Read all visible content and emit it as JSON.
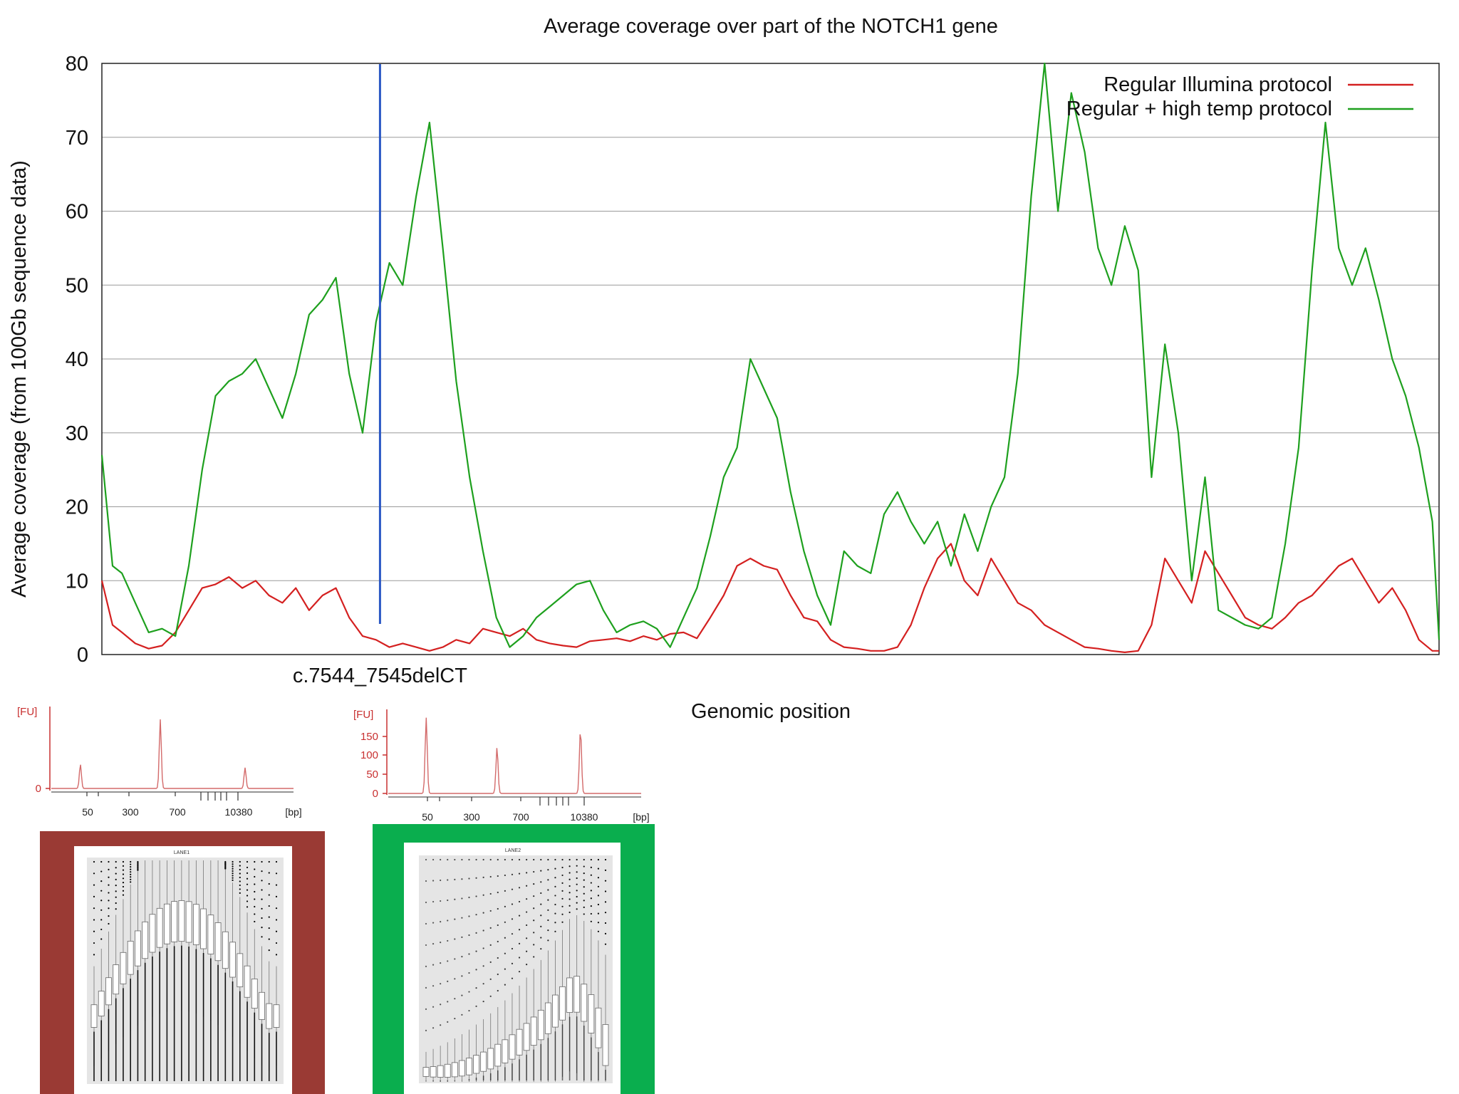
{
  "chart_data": [
    {
      "type": "line",
      "title": "Average coverage over part of the NOTCH1 gene",
      "xlabel": "Genomic position",
      "ylabel": "Average coverage (from 100Gb sequence data)",
      "ylim": [
        0,
        80
      ],
      "xlim": [
        0,
        100
      ],
      "yticks": [
        "0",
        "10",
        "20",
        "30",
        "40",
        "50",
        "60",
        "70",
        "80"
      ],
      "grid": true,
      "legend_position": "top-right",
      "annotation": {
        "label": "c.7544_7545delCT",
        "x": 20.8
      },
      "series": [
        {
          "name": "Regular Illumina protocol",
          "color": "#d42020",
          "points": [
            [
              0,
              10
            ],
            [
              0.8,
              4
            ],
            [
              1.5,
              3
            ],
            [
              2.5,
              1.5
            ],
            [
              3.5,
              0.8
            ],
            [
              4.5,
              1.2
            ],
            [
              5.5,
              3
            ],
            [
              6.5,
              6
            ],
            [
              7.5,
              9
            ],
            [
              8.5,
              9.5
            ],
            [
              9.5,
              10.5
            ],
            [
              10.5,
              9
            ],
            [
              11.5,
              10
            ],
            [
              12.5,
              8
            ],
            [
              13.5,
              7
            ],
            [
              14.5,
              9
            ],
            [
              15.5,
              6
            ],
            [
              16.5,
              8
            ],
            [
              17.5,
              9
            ],
            [
              18.5,
              5
            ],
            [
              19.5,
              2.5
            ],
            [
              20.5,
              2
            ],
            [
              21.5,
              1
            ],
            [
              22.5,
              1.5
            ],
            [
              23.5,
              1
            ],
            [
              24.5,
              0.5
            ],
            [
              25.5,
              1
            ],
            [
              26.5,
              2
            ],
            [
              27.5,
              1.5
            ],
            [
              28.5,
              3.5
            ],
            [
              29.5,
              3
            ],
            [
              30.5,
              2.5
            ],
            [
              31.5,
              3.5
            ],
            [
              32.5,
              2
            ],
            [
              33.5,
              1.5
            ],
            [
              34.5,
              1.2
            ],
            [
              35.5,
              1
            ],
            [
              36.5,
              1.8
            ],
            [
              37.5,
              2
            ],
            [
              38.5,
              2.2
            ],
            [
              39.5,
              1.8
            ],
            [
              40.5,
              2.5
            ],
            [
              41.5,
              2
            ],
            [
              42.5,
              2.8
            ],
            [
              43.5,
              3
            ],
            [
              44.5,
              2.2
            ],
            [
              45.5,
              5
            ],
            [
              46.5,
              8
            ],
            [
              47.5,
              12
            ],
            [
              48.5,
              13
            ],
            [
              49.5,
              12
            ],
            [
              50.5,
              11.5
            ],
            [
              51.5,
              8
            ],
            [
              52.5,
              5
            ],
            [
              53.5,
              4.5
            ],
            [
              54.5,
              2
            ],
            [
              55.5,
              1
            ],
            [
              56.5,
              0.8
            ],
            [
              57.5,
              0.5
            ],
            [
              58.5,
              0.5
            ],
            [
              59.5,
              1
            ],
            [
              60.5,
              4
            ],
            [
              61.5,
              9
            ],
            [
              62.5,
              13
            ],
            [
              63.5,
              15
            ],
            [
              64.5,
              10
            ],
            [
              65.5,
              8
            ],
            [
              66.5,
              13
            ],
            [
              67.5,
              10
            ],
            [
              68.5,
              7
            ],
            [
              69.5,
              6
            ],
            [
              70.5,
              4
            ],
            [
              71.5,
              3
            ],
            [
              72.5,
              2
            ],
            [
              73.5,
              1
            ],
            [
              74.5,
              0.8
            ],
            [
              75.5,
              0.5
            ],
            [
              76.5,
              0.3
            ],
            [
              77.5,
              0.5
            ],
            [
              78.5,
              4
            ],
            [
              79.5,
              13
            ],
            [
              80.5,
              10
            ],
            [
              81.5,
              7
            ],
            [
              82.5,
              14
            ],
            [
              83.5,
              11
            ],
            [
              84.5,
              8
            ],
            [
              85.5,
              5
            ],
            [
              86.5,
              4
            ],
            [
              87.5,
              3.5
            ],
            [
              88.5,
              5
            ],
            [
              89.5,
              7
            ],
            [
              90.5,
              8
            ],
            [
              91.5,
              10
            ],
            [
              92.5,
              12
            ],
            [
              93.5,
              13
            ],
            [
              94.5,
              10
            ],
            [
              95.5,
              7
            ],
            [
              96.5,
              9
            ],
            [
              97.5,
              6
            ],
            [
              98.5,
              2
            ],
            [
              99.5,
              0.5
            ],
            [
              100,
              0.5
            ]
          ]
        },
        {
          "name": "Regular + high temp protocol",
          "color": "#1ea01e",
          "points": [
            [
              0,
              27
            ],
            [
              0.8,
              12
            ],
            [
              1.5,
              11
            ],
            [
              2.5,
              7
            ],
            [
              3.5,
              3
            ],
            [
              4.5,
              3.5
            ],
            [
              5.5,
              2.5
            ],
            [
              6.5,
              12
            ],
            [
              7.5,
              25
            ],
            [
              8.5,
              35
            ],
            [
              9.5,
              37
            ],
            [
              10.5,
              38
            ],
            [
              11.5,
              40
            ],
            [
              12.5,
              36
            ],
            [
              13.5,
              32
            ],
            [
              14.5,
              38
            ],
            [
              15.5,
              46
            ],
            [
              16.5,
              48
            ],
            [
              17.5,
              51
            ],
            [
              18.5,
              38
            ],
            [
              19.5,
              30
            ],
            [
              20.5,
              45
            ],
            [
              21.5,
              53
            ],
            [
              22.5,
              50
            ],
            [
              23.5,
              62
            ],
            [
              24.5,
              72
            ],
            [
              25.5,
              55
            ],
            [
              26.5,
              37
            ],
            [
              27.5,
              24
            ],
            [
              28.5,
              14
            ],
            [
              29.5,
              5
            ],
            [
              30.5,
              1
            ],
            [
              31.5,
              2.5
            ],
            [
              32.5,
              5
            ],
            [
              33.5,
              6.5
            ],
            [
              34.5,
              8
            ],
            [
              35.5,
              9.5
            ],
            [
              36.5,
              10
            ],
            [
              37.5,
              6
            ],
            [
              38.5,
              3
            ],
            [
              39.5,
              4
            ],
            [
              40.5,
              4.5
            ],
            [
              41.5,
              3.5
            ],
            [
              42.5,
              1
            ],
            [
              43.5,
              5
            ],
            [
              44.5,
              9
            ],
            [
              45.5,
              16
            ],
            [
              46.5,
              24
            ],
            [
              47.5,
              28
            ],
            [
              48.5,
              40
            ],
            [
              49.5,
              36
            ],
            [
              50.5,
              32
            ],
            [
              51.5,
              22
            ],
            [
              52.5,
              14
            ],
            [
              53.5,
              8
            ],
            [
              54.5,
              4
            ],
            [
              55.5,
              14
            ],
            [
              56.5,
              12
            ],
            [
              57.5,
              11
            ],
            [
              58.5,
              19
            ],
            [
              59.5,
              22
            ],
            [
              60.5,
              18
            ],
            [
              61.5,
              15
            ],
            [
              62.5,
              18
            ],
            [
              63.5,
              12
            ],
            [
              64.5,
              19
            ],
            [
              65.5,
              14
            ],
            [
              66.5,
              20
            ],
            [
              67.5,
              24
            ],
            [
              68.5,
              38
            ],
            [
              69.5,
              62
            ],
            [
              70.5,
              80
            ],
            [
              71.5,
              60
            ],
            [
              72.5,
              76
            ],
            [
              73.5,
              68
            ],
            [
              74.5,
              55
            ],
            [
              75.5,
              50
            ],
            [
              76.5,
              58
            ],
            [
              77.5,
              52
            ],
            [
              78.5,
              24
            ],
            [
              79.5,
              42
            ],
            [
              80.5,
              30
            ],
            [
              81.5,
              10
            ],
            [
              82.5,
              24
            ],
            [
              83.5,
              6
            ],
            [
              84.5,
              5
            ],
            [
              85.5,
              4
            ],
            [
              86.5,
              3.5
            ],
            [
              87.5,
              5
            ],
            [
              88.5,
              15
            ],
            [
              89.5,
              28
            ],
            [
              90.5,
              52
            ],
            [
              91.5,
              72
            ],
            [
              92.5,
              55
            ],
            [
              93.5,
              50
            ],
            [
              94.5,
              55
            ],
            [
              95.5,
              48
            ],
            [
              96.5,
              40
            ],
            [
              97.5,
              35
            ],
            [
              98.5,
              28
            ],
            [
              99.5,
              18
            ],
            [
              100,
              2
            ]
          ]
        }
      ]
    }
  ],
  "mini_electropherograms": [
    {
      "y_unit": "[FU]",
      "y_ticks": [
        "0"
      ],
      "x_ticks": [
        "50",
        "300",
        "700",
        "10380"
      ],
      "x_unit": "[bp]",
      "color": "#d36a6a",
      "peaks": [
        {
          "pos": 0.12,
          "height": 0.35
        },
        {
          "pos": 0.45,
          "height": 1.0
        },
        {
          "pos": 0.8,
          "height": 0.3
        }
      ]
    },
    {
      "y_unit": "[FU]",
      "y_ticks": [
        "150",
        "100",
        "50",
        "0"
      ],
      "x_ticks": [
        "50",
        "300",
        "700",
        "10380"
      ],
      "x_unit": "[bp]",
      "color": "#d36a6a",
      "peaks": [
        {
          "pos": 0.15,
          "height": 0.95
        },
        {
          "pos": 0.43,
          "height": 0.58
        },
        {
          "pos": 0.76,
          "height": 0.8
        }
      ]
    }
  ],
  "gc_panels": [
    {
      "title": "LANE1",
      "frame_color": "#9a3a34",
      "profile": "broad"
    },
    {
      "title": "LANE2",
      "frame_color": "#0aae4e",
      "profile": "skewed"
    }
  ]
}
